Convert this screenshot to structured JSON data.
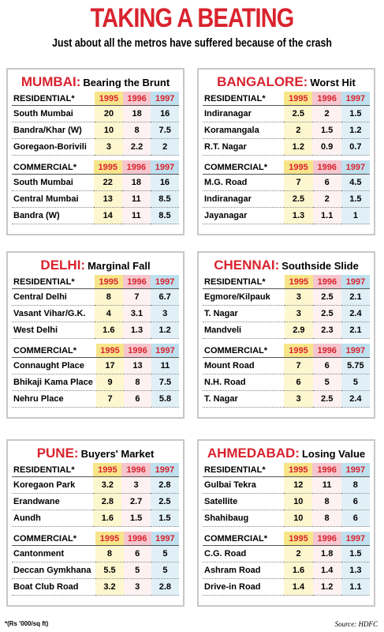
{
  "header": {
    "title": "TAKING A BEATING",
    "subtitle": "Just about all the metros have suffered because of the crash"
  },
  "panels": [
    {
      "city": "MUMBAI:",
      "subtitle": "Bearing the Brunt",
      "residential": {
        "label": "RESIDENTIAL*",
        "years": [
          "1995",
          "1996",
          "1997"
        ],
        "rows": [
          {
            "name": "South Mumbai",
            "values": [
              20,
              18,
              16
            ]
          },
          {
            "name": "Bandra/Khar (W)",
            "values": [
              10,
              8,
              7.5
            ]
          },
          {
            "name": "Goregaon-Borivili",
            "values": [
              3,
              2.2,
              2
            ]
          }
        ]
      },
      "commercial": {
        "label": "COMMERCIAL*",
        "years": [
          "1995",
          "1996",
          "1997"
        ],
        "rows": [
          {
            "name": "South Mumbai",
            "values": [
              22,
              18,
              16
            ]
          },
          {
            "name": "Central Mumbai",
            "values": [
              13,
              11,
              8.5
            ]
          },
          {
            "name": "Bandra (W)",
            "values": [
              14,
              11,
              8.5
            ]
          }
        ]
      }
    },
    {
      "city": "BANGALORE:",
      "subtitle": "Worst Hit",
      "residential": {
        "label": "RESIDENTIAL*",
        "years": [
          "1995",
          "1996",
          "1997"
        ],
        "rows": [
          {
            "name": "Indiranagar",
            "values": [
              2.5,
              2,
              1.5
            ]
          },
          {
            "name": "Koramangala",
            "values": [
              2,
              1.5,
              1.2
            ]
          },
          {
            "name": "R.T. Nagar",
            "values": [
              1.2,
              0.9,
              0.7
            ]
          }
        ]
      },
      "commercial": {
        "label": "COMMERCIAL*",
        "years": [
          "1995",
          "1996",
          "1997"
        ],
        "rows": [
          {
            "name": "M.G. Road",
            "values": [
              7,
              6,
              4.5
            ]
          },
          {
            "name": "Indiranagar",
            "values": [
              2.5,
              2,
              1.5
            ]
          },
          {
            "name": "Jayanagar",
            "values": [
              1.3,
              1.1,
              1
            ]
          }
        ]
      }
    },
    {
      "city": "DELHI:",
      "subtitle": "Marginal Fall",
      "residential": {
        "label": "RESIDENTIAL*",
        "years": [
          "1995",
          "1996",
          "1997"
        ],
        "rows": [
          {
            "name": "Central Delhi",
            "values": [
              8,
              7,
              6.7
            ]
          },
          {
            "name": "Vasant Vihar/G.K.",
            "values": [
              4,
              3.1,
              3
            ]
          },
          {
            "name": "West Delhi",
            "values": [
              1.6,
              1.3,
              1.2
            ]
          }
        ]
      },
      "commercial": {
        "label": "COMMERCIAL*",
        "years": [
          "1995",
          "1996",
          "1997"
        ],
        "rows": [
          {
            "name": "Connaught Place",
            "values": [
              17,
              13,
              11
            ]
          },
          {
            "name": "Bhikaji Kama Place",
            "values": [
              9,
              8,
              7.5
            ]
          },
          {
            "name": "Nehru Place",
            "values": [
              7,
              6,
              5.8
            ]
          }
        ]
      }
    },
    {
      "city": "CHENNAI:",
      "subtitle": "Southside Slide",
      "residential": {
        "label": "RESIDENTIAL*",
        "years": [
          "1995",
          "1996",
          "1997"
        ],
        "rows": [
          {
            "name": "Egmore/Kilpauk",
            "values": [
              3,
              2.5,
              2.1
            ]
          },
          {
            "name": "T. Nagar",
            "values": [
              3,
              2.5,
              2.4
            ]
          },
          {
            "name": "Mandveli",
            "values": [
              2.9,
              2.3,
              2.1
            ]
          }
        ]
      },
      "commercial": {
        "label": "COMMERCIAL*",
        "years": [
          "1995",
          "1996",
          "1997"
        ],
        "rows": [
          {
            "name": "Mount Road",
            "values": [
              7,
              6,
              5.75
            ]
          },
          {
            "name": "N.H. Road",
            "values": [
              6,
              5,
              5
            ]
          },
          {
            "name": "T. Nagar",
            "values": [
              3,
              2.5,
              2.4
            ]
          }
        ]
      }
    },
    {
      "city": "PUNE:",
      "subtitle": "Buyers' Market",
      "residential": {
        "label": "RESIDENTIAL*",
        "years": [
          "1995",
          "1996",
          "1997"
        ],
        "rows": [
          {
            "name": "Koregaon Park",
            "values": [
              3.2,
              3,
              2.8
            ]
          },
          {
            "name": "Erandwane",
            "values": [
              2.8,
              2.7,
              2.5
            ]
          },
          {
            "name": "Aundh",
            "values": [
              1.6,
              1.5,
              1.5
            ]
          }
        ]
      },
      "commercial": {
        "label": "COMMERCIAL*",
        "years": [
          "1995",
          "1996",
          "1997"
        ],
        "rows": [
          {
            "name": "Cantonment",
            "values": [
              8,
              6,
              5
            ]
          },
          {
            "name": "Deccan Gymkhana",
            "values": [
              5.5,
              5,
              5
            ]
          },
          {
            "name": "Boat Club Road",
            "values": [
              3.2,
              3,
              2.8
            ]
          }
        ]
      }
    },
    {
      "city": "AHMEDABAD:",
      "subtitle": "Losing Value",
      "residential": {
        "label": "RESIDENTIAL*",
        "years": [
          "1995",
          "1996",
          "1997"
        ],
        "rows": [
          {
            "name": "Gulbai Tekra",
            "values": [
              12,
              11,
              8
            ]
          },
          {
            "name": "Satellite",
            "values": [
              10,
              8,
              6
            ]
          },
          {
            "name": "Shahibaug",
            "values": [
              10,
              8,
              6
            ]
          }
        ]
      },
      "commercial": {
        "label": "COMMERCIAL*",
        "years": [
          "1995",
          "1996",
          "1997"
        ],
        "rows": [
          {
            "name": "C.G. Road",
            "values": [
              2,
              1.8,
              1.5
            ]
          },
          {
            "name": "Ashram Road",
            "values": [
              1.6,
              1.4,
              1.3
            ]
          },
          {
            "name": "Drive-in Road",
            "values": [
              1.4,
              1.2,
              1.1
            ]
          }
        ]
      }
    }
  ],
  "footnote": "*(Rs '000/sq ft)",
  "source": "Source: HDFC"
}
